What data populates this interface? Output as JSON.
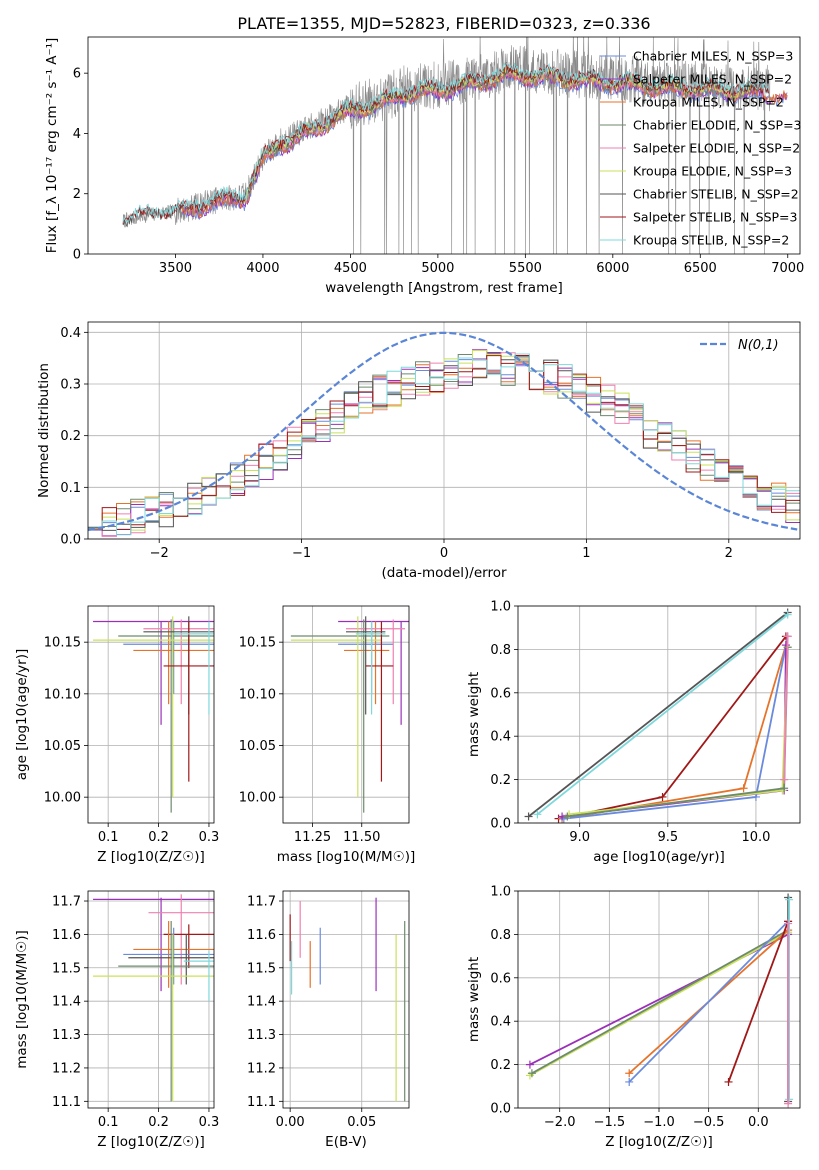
{
  "figure_title": "PLATE=1355, MJD=52823, FIBERID=0323, z=0.336",
  "colors": {
    "cm": "#6a8bdc",
    "sm": "#9b30b8",
    "km": "#e6732a",
    "ce": "#6e8a6e",
    "se": "#ef80b0",
    "ke": "#c8e25a",
    "cs": "#555555",
    "ss": "#a01818",
    "ks": "#7fd8dc",
    "obs": "#8a8a8a",
    "normal": "#5b86d6"
  },
  "chart_data": [
    {
      "id": "spectrum",
      "type": "line",
      "xlabel": "wavelength [Angstrom, rest frame]",
      "ylabel": "Flux [f_λ 10⁻¹⁷ erg cm⁻² s⁻¹ A⁻¹]",
      "xlim": [
        3000,
        7070
      ],
      "ylim": [
        0,
        7.2
      ],
      "xticks": [
        3500,
        4000,
        4500,
        5000,
        5500,
        6000,
        6500,
        7000
      ],
      "yticks": [
        0,
        2,
        4,
        6
      ],
      "grid": false,
      "legend_position": "right",
      "continuum": {
        "x": [
          3200,
          3300,
          3400,
          3500,
          3600,
          3700,
          3800,
          3900,
          3950,
          4000,
          4100,
          4200,
          4300,
          4400,
          4500,
          4600,
          4700,
          4800,
          4900,
          5000,
          5200,
          5400,
          5600,
          5800,
          6000,
          6200,
          6400,
          6600,
          6800,
          6900
        ],
        "y": [
          1.1,
          1.25,
          1.35,
          1.4,
          1.55,
          1.75,
          1.85,
          1.95,
          2.6,
          3.2,
          3.75,
          4.0,
          4.3,
          4.6,
          4.9,
          5.05,
          5.2,
          5.45,
          5.55,
          5.6,
          5.8,
          6.15,
          6.05,
          5.95,
          5.85,
          5.75,
          5.65,
          5.6,
          5.55,
          5.5
        ]
      },
      "series": [
        {
          "name": "Chabrier MILES, N_SSP=3",
          "key": "cm",
          "start": 3540,
          "end": 7000
        },
        {
          "name": "Salpeter MILES, N_SSP=2",
          "key": "sm",
          "start": 3540,
          "end": 7000
        },
        {
          "name": "Kroupa MILES, N_SSP=2",
          "key": "km",
          "start": 3540,
          "end": 7000
        },
        {
          "name": "Chabrier ELODIE, N_SSP=3",
          "key": "ce",
          "start": 3900,
          "end": 6800
        },
        {
          "name": "Salpeter ELODIE, N_SSP=2",
          "key": "se",
          "start": 3900,
          "end": 6800
        },
        {
          "name": "Kroupa ELODIE, N_SSP=3",
          "key": "ke",
          "start": 3900,
          "end": 6800
        },
        {
          "name": "Chabrier STELIB, N_SSP=2",
          "key": "cs",
          "start": 3200,
          "end": 6890
        },
        {
          "name": "Salpeter STELIB, N_SSP=3",
          "key": "ss",
          "start": 3200,
          "end": 6890
        },
        {
          "name": "Kroupa STELIB, N_SSP=2",
          "key": "ks",
          "start": 3200,
          "end": 6890
        }
      ]
    },
    {
      "id": "residuals",
      "type": "histogram",
      "xlabel": "(data-model)/error",
      "ylabel": "Normed distribution",
      "xlim": [
        -2.5,
        2.5
      ],
      "ylim": [
        0,
        0.42
      ],
      "xticks": [
        -2,
        -1,
        0,
        1,
        2
      ],
      "yticks": [
        0.0,
        0.1,
        0.2,
        0.3,
        0.4
      ],
      "grid": true,
      "legend": "N(0,1)",
      "legend_position": "top-right",
      "bin_width": 0.1,
      "envelope_x": [
        -2.5,
        -2.0,
        -1.5,
        -1.0,
        -0.5,
        0.0,
        0.3,
        0.6,
        0.9,
        1.2,
        1.5,
        2.0,
        2.5
      ],
      "envelope_y": [
        0.025,
        0.05,
        0.11,
        0.19,
        0.28,
        0.32,
        0.335,
        0.325,
        0.3,
        0.26,
        0.2,
        0.12,
        0.06
      ]
    },
    {
      "id": "age-vs-Z",
      "type": "errorbar",
      "xlabel": "Z [log10(Z/Z☉)]",
      "ylabel": "age [log10(age/yr)]",
      "xlim": [
        0.06,
        0.31
      ],
      "ylim": [
        9.975,
        10.185
      ],
      "xticks": [
        0.1,
        0.2,
        0.3
      ],
      "yticks": [
        10.0,
        10.05,
        10.1,
        10.15
      ],
      "grid": true,
      "bars": [
        {
          "key": "sm",
          "x": 0.205,
          "y": 10.17,
          "xl": 0.07,
          "xh": 0.31,
          "yl": 10.07,
          "yh": 10.17
        },
        {
          "key": "cm",
          "x": 0.23,
          "y": 10.148,
          "xl": 0.13,
          "xh": 0.31,
          "yl": 10.1,
          "yh": 10.17
        },
        {
          "key": "km",
          "x": 0.22,
          "y": 10.142,
          "xl": 0.15,
          "xh": 0.31,
          "yl": 10.09,
          "yh": 10.17
        },
        {
          "key": "ce",
          "x": 0.225,
          "y": 10.156,
          "xl": 0.12,
          "xh": 0.31,
          "yl": 9.985,
          "yh": 10.172
        },
        {
          "key": "se",
          "x": 0.245,
          "y": 10.163,
          "xl": 0.17,
          "xh": 0.31,
          "yl": 10.09,
          "yh": 10.172
        },
        {
          "key": "ke",
          "x": 0.228,
          "y": 10.152,
          "xl": 0.07,
          "xh": 0.31,
          "yl": 10.0,
          "yh": 10.175
        },
        {
          "key": "cs",
          "x": 0.26,
          "y": 10.16,
          "xl": 0.17,
          "xh": 0.31,
          "yl": 10.08,
          "yh": 10.175
        },
        {
          "key": "ss",
          "x": 0.26,
          "y": 10.127,
          "xl": 0.21,
          "xh": 0.31,
          "yl": 10.015,
          "yh": 10.17
        },
        {
          "key": "ks",
          "x": 0.3,
          "y": 10.158,
          "xl": 0.23,
          "xh": 0.31,
          "yl": 10.08,
          "yh": 10.17
        }
      ]
    },
    {
      "id": "age-vs-mass",
      "type": "errorbar",
      "xlabel": "mass [log10(M/M☉)]",
      "ylabel": "",
      "xlim": [
        11.1,
        11.74
      ],
      "ylim": [
        9.975,
        10.185
      ],
      "xticks": [
        11.25,
        11.5
      ],
      "yticks": [
        10.0,
        10.05,
        10.1,
        10.15
      ],
      "grid": true,
      "bars": [
        {
          "key": "sm",
          "x": 11.7,
          "y": 10.17,
          "xl": 11.38,
          "xh": 11.74,
          "yl": 10.07,
          "yh": 10.17
        },
        {
          "key": "cm",
          "x": 11.55,
          "y": 10.148,
          "xl": 11.38,
          "xh": 11.66,
          "yl": 10.1,
          "yh": 10.17
        },
        {
          "key": "km",
          "x": 11.57,
          "y": 10.142,
          "xl": 11.41,
          "xh": 11.64,
          "yl": 10.09,
          "yh": 10.17
        },
        {
          "key": "ce",
          "x": 11.51,
          "y": 10.156,
          "xl": 11.14,
          "xh": 11.64,
          "yl": 9.985,
          "yh": 10.172
        },
        {
          "key": "se",
          "x": 11.66,
          "y": 10.163,
          "xl": 11.42,
          "xh": 11.72,
          "yl": 10.09,
          "yh": 10.172
        },
        {
          "key": "ke",
          "x": 11.48,
          "y": 10.152,
          "xl": 11.14,
          "xh": 11.6,
          "yl": 10.0,
          "yh": 10.175
        },
        {
          "key": "cs",
          "x": 11.52,
          "y": 10.16,
          "xl": 11.42,
          "xh": 11.62,
          "yl": 10.08,
          "yh": 10.175
        },
        {
          "key": "ss",
          "x": 11.6,
          "y": 10.127,
          "xl": 11.52,
          "xh": 11.66,
          "yl": 10.015,
          "yh": 10.17
        },
        {
          "key": "ks",
          "x": 11.55,
          "y": 10.158,
          "xl": 11.47,
          "xh": 11.62,
          "yl": 10.08,
          "yh": 10.17
        }
      ]
    },
    {
      "id": "weight-vs-age",
      "type": "line",
      "xlabel": "age [log10(age/yr)]",
      "ylabel": "mass weight",
      "xlim": [
        8.65,
        10.25
      ],
      "ylim": [
        0,
        1.0
      ],
      "xticks": [
        9.0,
        9.5,
        10.0
      ],
      "yticks": [
        0.0,
        0.2,
        0.4,
        0.6,
        0.8,
        1.0
      ],
      "grid": true,
      "series": [
        {
          "key": "cs",
          "x": [
            8.71,
            10.18
          ],
          "y": [
            0.03,
            0.97
          ]
        },
        {
          "key": "ks",
          "x": [
            8.76,
            10.18
          ],
          "y": [
            0.04,
            0.96
          ]
        },
        {
          "key": "ss",
          "x": [
            8.88,
            9.47,
            10.17
          ],
          "y": [
            0.02,
            0.12,
            0.86
          ]
        },
        {
          "key": "km",
          "x": [
            8.9,
            9.93,
            10.17
          ],
          "y": [
            0.02,
            0.16,
            0.82
          ]
        },
        {
          "key": "cm",
          "x": [
            8.91,
            10.0,
            10.18
          ],
          "y": [
            0.02,
            0.12,
            0.86
          ]
        },
        {
          "key": "sm",
          "x": [
            8.9,
            10.16,
            10.17
          ],
          "y": [
            0.03,
            0.15,
            0.82
          ]
        },
        {
          "key": "ke",
          "x": [
            8.94,
            10.15,
            10.18
          ],
          "y": [
            0.04,
            0.15,
            0.81
          ]
        },
        {
          "key": "ce",
          "x": [
            8.93,
            10.16,
            10.18
          ],
          "y": [
            0.03,
            0.16,
            0.81
          ]
        },
        {
          "key": "se",
          "x": [
            10.16,
            10.18
          ],
          "y": [
            0.2,
            0.86
          ]
        }
      ]
    },
    {
      "id": "mass-vs-Z",
      "type": "errorbar",
      "xlabel": "Z [log10(Z/Z☉)]",
      "ylabel": "mass [log10(M/M☉)]",
      "xlim": [
        0.06,
        0.31
      ],
      "ylim": [
        11.08,
        11.73
      ],
      "xticks": [
        0.1,
        0.2,
        0.3
      ],
      "yticks": [
        11.1,
        11.2,
        11.3,
        11.4,
        11.5,
        11.6,
        11.7
      ],
      "grid": true,
      "bars": [
        {
          "key": "sm",
          "x": 0.205,
          "y": 11.705,
          "xl": 0.07,
          "xh": 0.31,
          "yl": 11.43,
          "yh": 11.71
        },
        {
          "key": "se",
          "x": 0.245,
          "y": 11.665,
          "xl": 0.18,
          "xh": 0.31,
          "yl": 11.45,
          "yh": 11.72
        },
        {
          "key": "ss",
          "x": 0.26,
          "y": 11.6,
          "xl": 0.21,
          "xh": 0.31,
          "yl": 11.5,
          "yh": 11.63
        },
        {
          "key": "km",
          "x": 0.22,
          "y": 11.555,
          "xl": 0.15,
          "xh": 0.31,
          "yl": 11.44,
          "yh": 11.64
        },
        {
          "key": "cm",
          "x": 0.23,
          "y": 11.54,
          "xl": 0.13,
          "xh": 0.31,
          "yl": 11.45,
          "yh": 11.62
        },
        {
          "key": "cs",
          "x": 0.255,
          "y": 11.53,
          "xl": 0.14,
          "xh": 0.31,
          "yl": 11.45,
          "yh": 11.6
        },
        {
          "key": "ce",
          "x": 0.225,
          "y": 11.505,
          "xl": 0.12,
          "xh": 0.31,
          "yl": 11.1,
          "yh": 11.64
        },
        {
          "key": "ke",
          "x": 0.228,
          "y": 11.475,
          "xl": 0.07,
          "xh": 0.31,
          "yl": 11.1,
          "yh": 11.6
        },
        {
          "key": "ks",
          "x": 0.3,
          "y": 11.52,
          "xl": 0.25,
          "xh": 0.31,
          "yl": 11.4,
          "yh": 11.55
        }
      ]
    },
    {
      "id": "mass-vs-ebv",
      "type": "errorbar",
      "xlabel": "E(B-V)",
      "ylabel": "",
      "xlim": [
        -0.005,
        0.083
      ],
      "ylim": [
        11.08,
        11.73
      ],
      "xticks": [
        0.0,
        0.05
      ],
      "yticks": [
        11.1,
        11.2,
        11.3,
        11.4,
        11.5,
        11.6,
        11.7
      ],
      "grid": true,
      "bars": [
        {
          "key": "ss",
          "x": 0.0,
          "y": 11.6,
          "yl": 11.52,
          "yh": 11.66
        },
        {
          "key": "ks",
          "x": 0.001,
          "y": 11.5,
          "yl": 11.42,
          "yh": 11.58
        },
        {
          "key": "se",
          "x": 0.007,
          "y": 11.65,
          "yl": 11.53,
          "yh": 11.7
        },
        {
          "key": "km",
          "x": 0.014,
          "y": 11.52,
          "yl": 11.44,
          "yh": 11.58
        },
        {
          "key": "cm",
          "x": 0.021,
          "y": 11.54,
          "yl": 11.45,
          "yh": 11.62
        },
        {
          "key": "sm",
          "x": 0.06,
          "y": 11.58,
          "yl": 11.43,
          "yh": 11.71
        },
        {
          "key": "ke",
          "x": 0.074,
          "y": 11.4,
          "yl": 11.1,
          "yh": 11.6
        },
        {
          "key": "ce",
          "x": 0.08,
          "y": 11.4,
          "yl": 11.1,
          "yh": 11.64
        }
      ]
    },
    {
      "id": "weight-vs-Z",
      "type": "line",
      "xlabel": "Z [log10(Z/Z☉)]",
      "ylabel": "mass weight",
      "xlim": [
        -2.42,
        0.42
      ],
      "ylim": [
        0,
        1.0
      ],
      "xticks": [
        -2.0,
        -1.5,
        -1.0,
        -0.5,
        0.0
      ],
      "yticks": [
        0.0,
        0.2,
        0.4,
        0.6,
        0.8,
        1.0
      ],
      "grid": true,
      "series": [
        {
          "key": "sm",
          "x": [
            -2.3,
            0.3
          ],
          "y": [
            0.2,
            0.8
          ]
        },
        {
          "key": "ke",
          "x": [
            -2.3,
            0.3
          ],
          "y": [
            0.15,
            0.81
          ]
        },
        {
          "key": "ce",
          "x": [
            -2.28,
            0.3
          ],
          "y": [
            0.16,
            0.82
          ]
        },
        {
          "key": "km",
          "x": [
            -1.3,
            0.3
          ],
          "y": [
            0.16,
            0.82
          ]
        },
        {
          "key": "cm",
          "x": [
            -1.3,
            0.3
          ],
          "y": [
            0.12,
            0.86
          ]
        },
        {
          "key": "ss",
          "x": [
            -0.3,
            0.3
          ],
          "y": [
            0.12,
            0.86
          ]
        },
        {
          "key": "cs",
          "x": [
            0.3,
            0.3
          ],
          "y": [
            0.03,
            0.97
          ]
        },
        {
          "key": "ks",
          "x": [
            0.31,
            0.31
          ],
          "y": [
            0.04,
            0.96
          ]
        },
        {
          "key": "se",
          "x": [
            0.3,
            0.3
          ],
          "y": [
            0.02,
            0.85
          ]
        }
      ]
    }
  ]
}
